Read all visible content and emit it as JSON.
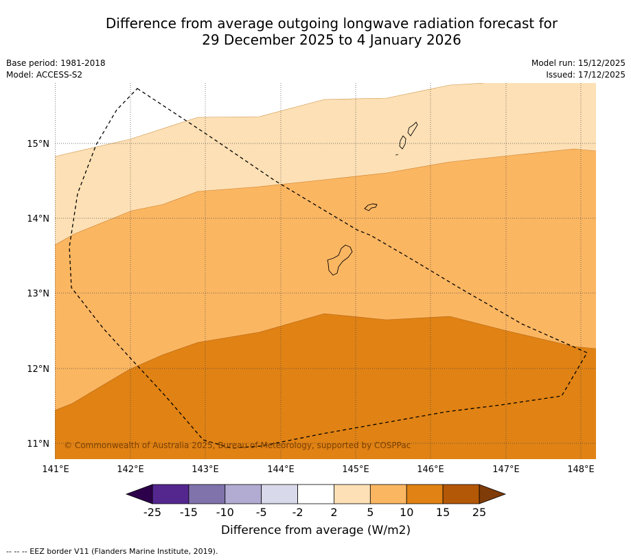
{
  "title_line1": "Difference from average outgoing longwave radiation forecast for",
  "title_line2": "29 December 2025 to 4 January 2026",
  "base_period": "Base period: 1981-2018",
  "model": "Model: ACCESS-S2",
  "model_run": "Model run: 15/12/2025",
  "issued": "Issued: 17/12/2025",
  "credit": "© Commonwealth of Australia 2025, Bureau of Meteorology, supported by COSPPac",
  "footer_legend": "--  --  -- EEZ border V11 (Flanders Marine Institute, 2019).",
  "lon_ticks": [
    "141°E",
    "142°E",
    "143°E",
    "144°E",
    "145°E",
    "146°E",
    "147°E",
    "148°E"
  ],
  "lat_ticks": [
    "15°N",
    "14°N",
    "13°N",
    "12°N",
    "11°N"
  ],
  "colorbar": {
    "title": "Difference from average (W/m2)",
    "labels": [
      "-25",
      "-15",
      "-10",
      "-5",
      "-2",
      "2",
      "5",
      "10",
      "15",
      "25"
    ],
    "colors": [
      "#54278f",
      "#8073ac",
      "#b2abd2",
      "#d8daeb",
      "#ffffff",
      "#fde0b5",
      "#fbb662",
      "#e08214",
      "#b35806"
    ],
    "under_color": "#2d004b",
    "over_color": "#7f3b08"
  },
  "colors": {
    "band_2_5": "#fde0b5",
    "band_5_10": "#fbb662",
    "band_10_15": "#e08214"
  }
}
